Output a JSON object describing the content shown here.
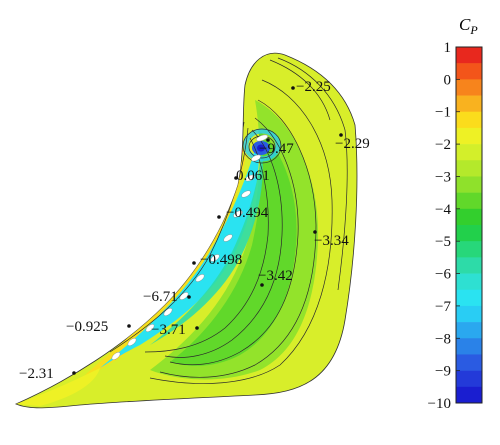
{
  "colorbar": {
    "title_main": "C",
    "title_sub": "P",
    "ticks": [
      "1",
      "0",
      "−1",
      "−2",
      "−3",
      "−4",
      "−5",
      "−6",
      "−7",
      "−8",
      "−9",
      "−10"
    ],
    "tick_values": [
      1,
      0,
      -1,
      -2,
      -3,
      -4,
      -5,
      -6,
      -7,
      -8,
      -9,
      -10
    ],
    "bands": [
      {
        "from": 1,
        "to": 0.5,
        "color": "#e8281e"
      },
      {
        "from": 0.5,
        "to": 0,
        "color": "#f3551a"
      },
      {
        "from": 0,
        "to": -0.5,
        "color": "#f7841c"
      },
      {
        "from": -0.5,
        "to": -1,
        "color": "#f9b21f"
      },
      {
        "from": -1,
        "to": -1.5,
        "color": "#fbdc1c"
      },
      {
        "from": -1.5,
        "to": -2,
        "color": "#eef125"
      },
      {
        "from": -2,
        "to": -2.5,
        "color": "#d3ef2a"
      },
      {
        "from": -2.5,
        "to": -3,
        "color": "#b4e92b"
      },
      {
        "from": -3,
        "to": -3.5,
        "color": "#8fe12b"
      },
      {
        "from": -3.5,
        "to": -4,
        "color": "#61d82a"
      },
      {
        "from": -4,
        "to": -4.5,
        "color": "#33cf2d"
      },
      {
        "from": -4.5,
        "to": -5,
        "color": "#22d04b"
      },
      {
        "from": -5,
        "to": -5.5,
        "color": "#27d77a"
      },
      {
        "from": -5.5,
        "to": -6,
        "color": "#2ddba8"
      },
      {
        "from": -6,
        "to": -6.5,
        "color": "#2ee0d2"
      },
      {
        "from": -6.5,
        "to": -7,
        "color": "#2ae3f1"
      },
      {
        "from": -7,
        "to": -7.5,
        "color": "#29cdf4"
      },
      {
        "from": -7.5,
        "to": -8,
        "color": "#2aa8ef"
      },
      {
        "from": -8,
        "to": -8.5,
        "color": "#2a82e8"
      },
      {
        "from": -8.5,
        "to": -9,
        "color": "#2a5be2"
      },
      {
        "from": -9,
        "to": -9.5,
        "color": "#233ad9"
      },
      {
        "from": -9.5,
        "to": -10,
        "color": "#1a1ed0"
      }
    ]
  },
  "annotations": [
    {
      "id": "lbl-a",
      "value": "−2.25"
    },
    {
      "id": "lbl-b",
      "value": "−2.29"
    },
    {
      "id": "lbl-c",
      "value": "−9.47"
    },
    {
      "id": "lbl-d",
      "value": "0.061"
    },
    {
      "id": "lbl-e",
      "value": "−0.494"
    },
    {
      "id": "lbl-f",
      "value": "−3.34"
    },
    {
      "id": "lbl-g",
      "value": "−0.498"
    },
    {
      "id": "lbl-h",
      "value": "−3.42"
    },
    {
      "id": "lbl-i",
      "value": "−6.71"
    },
    {
      "id": "lbl-j",
      "value": "−0.925"
    },
    {
      "id": "lbl-k",
      "value": "−3.71"
    },
    {
      "id": "lbl-l",
      "value": "−2.31"
    }
  ]
}
